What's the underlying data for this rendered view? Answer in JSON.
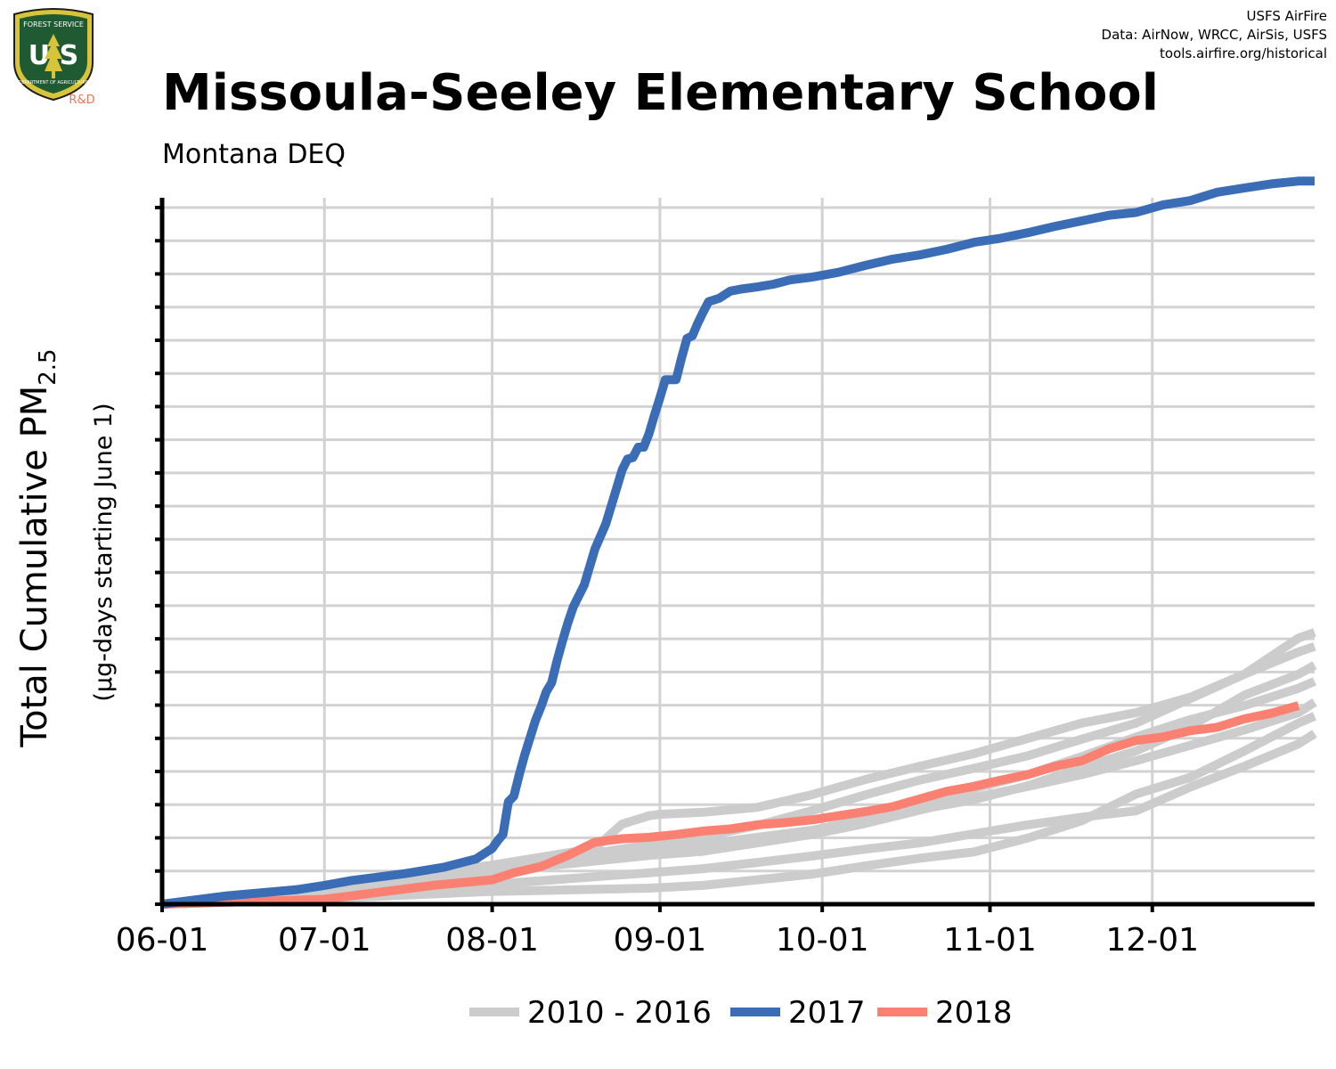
{
  "logo": {
    "top_text": "FOREST SERVICE",
    "letters": "U S",
    "bottom_text": "DEPARTMENT OF AGRICULTURE",
    "tag": "R&D"
  },
  "credits": [
    "USFS AirFire",
    "Data: AirNow, WRCC, AirSis, USFS",
    "tools.airfire.org/historical"
  ],
  "colors": {
    "historical": "#cccccc",
    "y2017": "#3a6db5",
    "y2018": "#fa8072",
    "grid": "#d2d2d2"
  },
  "chart_data": {
    "type": "line",
    "title": "Missoula-Seeley Elementary School",
    "subtitle": "Montana DEQ",
    "ylabel_main": "Total Cumulative PM",
    "ylabel_sub": "2.5",
    "ylabel_units": "(µg-days starting June 1)",
    "x_tick_labels": [
      "06-01",
      "07-01",
      "08-01",
      "09-01",
      "10-01",
      "11-01",
      "12-01"
    ],
    "x_tick_days": [
      0,
      30,
      61,
      92,
      122,
      153,
      183
    ],
    "xlim_days": [
      0,
      213
    ],
    "y_tick_labels_shown": false,
    "y_gridline_count": 22,
    "ylim": [
      0,
      100
    ],
    "grid": true,
    "legend_position": "bottom",
    "legend": [
      "2010 - 2016",
      "2017",
      "2018"
    ],
    "series": [
      {
        "name": "2017",
        "group": "2017",
        "x": [
          0,
          12,
          25,
          30,
          35,
          45,
          52,
          58,
          61,
          62,
          63,
          64,
          65,
          66,
          67,
          69,
          70,
          71,
          72,
          73,
          74,
          75,
          76,
          78,
          80,
          82,
          84,
          85,
          86,
          87,
          88,
          89,
          90,
          91,
          92,
          93,
          94,
          95,
          96,
          97,
          98,
          99,
          100,
          101,
          103,
          105,
          107,
          110,
          113,
          116,
          120,
          125,
          130,
          135,
          140,
          145,
          150,
          155,
          160,
          165,
          170,
          175,
          180,
          185,
          190,
          195,
          200,
          205,
          210,
          213
        ],
        "y": [
          0,
          1.2,
          2.1,
          2.7,
          3.4,
          4.4,
          5.3,
          6.5,
          8.0,
          9.1,
          10.0,
          14.7,
          15.5,
          18.6,
          21.4,
          26.4,
          28.3,
          30.5,
          31.8,
          35.0,
          37.8,
          40.4,
          42.7,
          45.8,
          51.0,
          54.6,
          59.7,
          62.3,
          63.9,
          64.1,
          65.6,
          65.6,
          67.6,
          70.2,
          72.7,
          75.3,
          75.3,
          75.3,
          78.4,
          81.2,
          81.6,
          83.4,
          85.0,
          86.5,
          87.0,
          88.0,
          88.3,
          88.6,
          89.0,
          89.6,
          90.0,
          90.7,
          91.7,
          92.6,
          93.2,
          94.0,
          95.0,
          95.6,
          96.4,
          97.3,
          98.1,
          98.9,
          99.3,
          100.4,
          101.0,
          102.2,
          102.8,
          103.4,
          103.8,
          103.8
        ]
      },
      {
        "name": "2018",
        "group": "2018",
        "x": [
          0,
          30,
          40,
          50,
          61,
          65,
          70,
          75,
          80,
          85,
          90,
          95,
          100,
          105,
          110,
          115,
          120,
          125,
          130,
          135,
          140,
          145,
          150,
          155,
          160,
          165,
          170,
          175,
          180,
          185,
          190,
          195,
          200,
          205,
          210
        ],
        "y": [
          0,
          0.7,
          1.7,
          2.7,
          3.5,
          4.5,
          5.4,
          7.0,
          8.9,
          9.4,
          9.6,
          10.0,
          10.5,
          10.8,
          11.4,
          11.7,
          12.1,
          12.7,
          13.3,
          14.0,
          15.1,
          16.2,
          16.9,
          17.8,
          18.6,
          19.8,
          20.6,
          22.3,
          23.5,
          24.0,
          24.9,
          25.4,
          26.6,
          27.4,
          28.5
        ]
      },
      {
        "name": "",
        "group": "2010 - 2016",
        "x": [
          0,
          30,
          60,
          80,
          85,
          90,
          92,
          100,
          110,
          120,
          130,
          140,
          150,
          160,
          170,
          180,
          190,
          200,
          210,
          213
        ],
        "y": [
          0,
          2.5,
          5.5,
          8.0,
          11.5,
          12.7,
          12.9,
          13.2,
          13.9,
          15.7,
          17.9,
          19.8,
          21.6,
          23.8,
          26.0,
          27.5,
          29.7,
          33.0,
          38.2,
          39.0
        ]
      },
      {
        "name": "",
        "group": "2010 - 2016",
        "x": [
          0,
          30,
          60,
          90,
          100,
          110,
          120,
          130,
          140,
          150,
          160,
          170,
          180,
          190,
          200,
          210,
          213
        ],
        "y": [
          0,
          2.2,
          5.0,
          8.5,
          9.7,
          11.3,
          13.4,
          15.7,
          17.8,
          19.5,
          21.3,
          23.7,
          26.0,
          29.5,
          33.0,
          36.2,
          37.0
        ]
      },
      {
        "name": "",
        "group": "2010 - 2016",
        "x": [
          0,
          30,
          60,
          90,
          100,
          110,
          120,
          130,
          140,
          150,
          160,
          170,
          180,
          190,
          200,
          210,
          213
        ],
        "y": [
          0,
          2.3,
          5.5,
          8.0,
          8.6,
          9.6,
          10.6,
          12.2,
          13.6,
          15.0,
          17.0,
          19.6,
          22.0,
          25.5,
          30.0,
          33.0,
          34.3
        ]
      },
      {
        "name": "",
        "group": "2010 - 2016",
        "x": [
          0,
          30,
          60,
          90,
          100,
          110,
          120,
          130,
          140,
          150,
          160,
          170,
          180,
          190,
          200,
          210,
          213
        ],
        "y": [
          0,
          2.0,
          4.5,
          7.6,
          8.3,
          9.4,
          10.5,
          12.2,
          14.5,
          16.6,
          18.6,
          21.2,
          24.0,
          26.5,
          28.5,
          31.0,
          32.0
        ]
      },
      {
        "name": "",
        "group": "2010 - 2016",
        "x": [
          0,
          30,
          60,
          90,
          100,
          110,
          120,
          130,
          140,
          150,
          160,
          170,
          180,
          190,
          200,
          210,
          213
        ],
        "y": [
          0,
          1.8,
          4.6,
          7.0,
          7.6,
          8.8,
          10.0,
          11.6,
          13.5,
          15.3,
          16.9,
          18.6,
          20.6,
          22.8,
          25.0,
          27.5,
          29.0
        ]
      },
      {
        "name": "",
        "group": "2010 - 2016",
        "x": [
          0,
          30,
          60,
          90,
          100,
          110,
          120,
          130,
          140,
          150,
          160,
          170,
          180,
          190,
          200,
          210,
          213
        ],
        "y": [
          0,
          1.2,
          2.8,
          4.5,
          5.1,
          6.0,
          6.9,
          7.9,
          8.8,
          10.1,
          11.4,
          12.5,
          13.4,
          16.8,
          19.8,
          23.0,
          24.5
        ]
      },
      {
        "name": "",
        "group": "2010 - 2016",
        "x": [
          0,
          30,
          60,
          90,
          100,
          110,
          120,
          130,
          140,
          150,
          160,
          170,
          180,
          190,
          200,
          210,
          213
        ],
        "y": [
          0,
          0.8,
          1.8,
          2.3,
          2.7,
          3.5,
          4.3,
          5.5,
          6.6,
          7.5,
          9.5,
          12.0,
          15.8,
          18.2,
          22.0,
          26.0,
          27.0
        ]
      }
    ]
  }
}
